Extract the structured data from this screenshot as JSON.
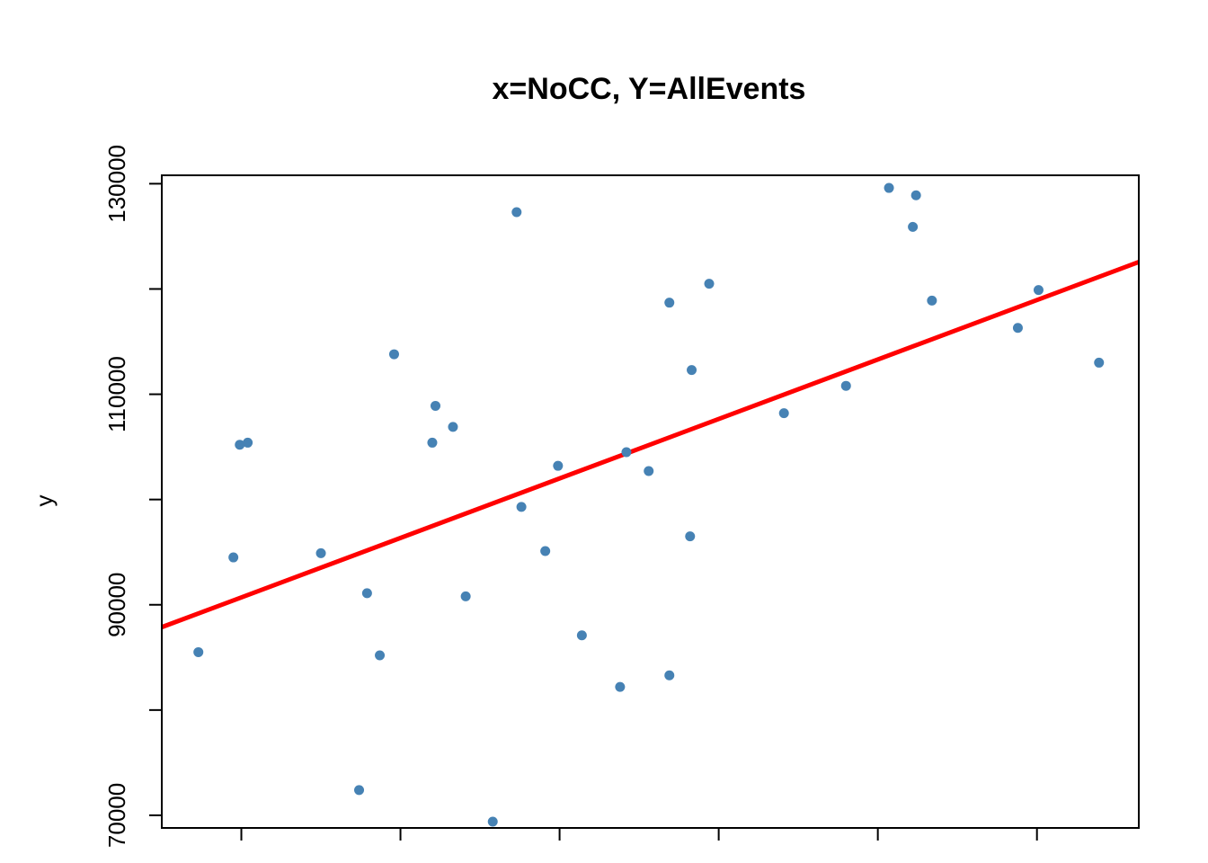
{
  "chart_data": {
    "type": "scatter",
    "title": "x=NoCC, Y=AllEvents",
    "xlabel": "",
    "ylabel": "y",
    "xlim": [
      -0.5,
      5.64
    ],
    "ylim": [
      68800,
      130800
    ],
    "x_ticks": [
      0,
      1,
      2,
      3,
      4,
      5
    ],
    "y_ticks": [
      70000,
      80000,
      90000,
      100000,
      110000,
      120000,
      130000
    ],
    "y_tick_labels": [
      {
        "value": 70000,
        "label": "70000"
      },
      {
        "value": 90000,
        "label": "90000"
      },
      {
        "value": 110000,
        "label": "110000"
      },
      {
        "value": 130000,
        "label": "130000"
      }
    ],
    "points": [
      {
        "x": -0.27,
        "y": 85500
      },
      {
        "x": -0.05,
        "y": 94500
      },
      {
        "x": -0.01,
        "y": 105200
      },
      {
        "x": 0.04,
        "y": 105400
      },
      {
        "x": 0.5,
        "y": 94900
      },
      {
        "x": 0.74,
        "y": 72400
      },
      {
        "x": 0.79,
        "y": 91100
      },
      {
        "x": 0.87,
        "y": 85200
      },
      {
        "x": 0.96,
        "y": 113800
      },
      {
        "x": 1.2,
        "y": 105400
      },
      {
        "x": 1.22,
        "y": 108900
      },
      {
        "x": 1.33,
        "y": 106900
      },
      {
        "x": 1.41,
        "y": 90800
      },
      {
        "x": 1.58,
        "y": 69400
      },
      {
        "x": 1.73,
        "y": 127300
      },
      {
        "x": 1.76,
        "y": 99300
      },
      {
        "x": 1.91,
        "y": 95100
      },
      {
        "x": 1.99,
        "y": 103200
      },
      {
        "x": 2.14,
        "y": 87100
      },
      {
        "x": 2.38,
        "y": 82200
      },
      {
        "x": 2.42,
        "y": 104500
      },
      {
        "x": 2.56,
        "y": 102700
      },
      {
        "x": 2.69,
        "y": 83300
      },
      {
        "x": 2.69,
        "y": 118700
      },
      {
        "x": 2.82,
        "y": 96500
      },
      {
        "x": 2.83,
        "y": 112300
      },
      {
        "x": 2.94,
        "y": 120500
      },
      {
        "x": 3.41,
        "y": 108200
      },
      {
        "x": 3.8,
        "y": 110800
      },
      {
        "x": 4.07,
        "y": 129600
      },
      {
        "x": 4.22,
        "y": 125900
      },
      {
        "x": 4.24,
        "y": 128900
      },
      {
        "x": 4.34,
        "y": 118900
      },
      {
        "x": 4.88,
        "y": 116300
      },
      {
        "x": 5.01,
        "y": 119900
      },
      {
        "x": 5.39,
        "y": 113000
      }
    ],
    "fit_line": {
      "slope": 5650,
      "intercept": 90700
    },
    "point_color": "#4682b4",
    "line_color": "#ff0000",
    "grid": false,
    "legend": "none"
  }
}
